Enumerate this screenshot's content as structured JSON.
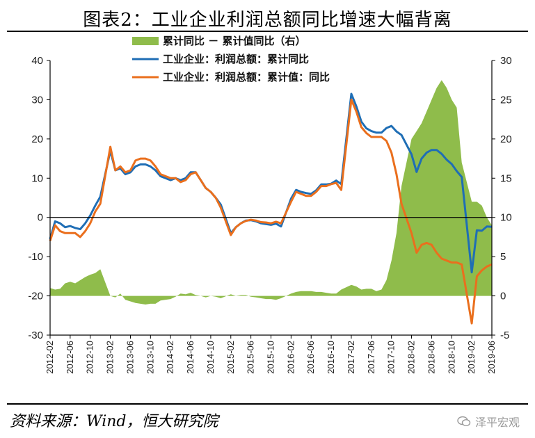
{
  "title": "图表2：工业企业利润总额同比增速大幅背离",
  "source": "资料来源：Wind，恒大研究院",
  "watermark": "泽平宏观",
  "colors": {
    "area": "#8fbc4b",
    "line1": "#1f6eb5",
    "line2": "#ea6f1d"
  },
  "chart_data": {
    "type": "line",
    "left_axis": {
      "ylim": [
        -30,
        40
      ],
      "ticks": [
        -30,
        -20,
        -10,
        0,
        10,
        20,
        30,
        40
      ]
    },
    "right_axis": {
      "ylim": [
        -5,
        30
      ],
      "ticks": [
        -5,
        0,
        5,
        10,
        15,
        20,
        25,
        30
      ]
    },
    "x_tick_labels": [
      "2012-02",
      "2012-06",
      "2012-10",
      "2013-02",
      "2013-06",
      "2013-10",
      "2014-02",
      "2014-06",
      "2014-10",
      "2015-02",
      "2015-06",
      "2015-10",
      "2016-02",
      "2016-06",
      "2016-10",
      "2017-02",
      "2017-06",
      "2017-10",
      "2018-02",
      "2018-06",
      "2018-10",
      "2019-02",
      "2019-06"
    ],
    "grid": false,
    "legend_position": "top-center",
    "series": [
      {
        "name": "累计同比 － 累计值同比（右）",
        "kind": "area",
        "axis": "right",
        "points": [
          [
            "2012-02",
            1.0
          ],
          [
            "2012-03",
            0.8
          ],
          [
            "2012-04",
            0.9
          ],
          [
            "2012-05",
            1.6
          ],
          [
            "2012-06",
            1.8
          ],
          [
            "2012-07",
            1.6
          ],
          [
            "2012-08",
            2.0
          ],
          [
            "2012-09",
            2.4
          ],
          [
            "2012-10",
            2.7
          ],
          [
            "2012-11",
            2.9
          ],
          [
            "2012-12",
            3.4
          ],
          [
            "2013-02",
            0.0
          ],
          [
            "2013-03",
            -0.2
          ],
          [
            "2013-04",
            0.3
          ],
          [
            "2013-05",
            -0.5
          ],
          [
            "2013-06",
            -0.7
          ],
          [
            "2013-07",
            -0.9
          ],
          [
            "2013-08",
            -1.0
          ],
          [
            "2013-09",
            -1.1
          ],
          [
            "2013-10",
            -1.0
          ],
          [
            "2013-11",
            -1.0
          ],
          [
            "2013-12",
            -0.6
          ],
          [
            "2014-02",
            -0.4
          ],
          [
            "2014-03",
            -0.1
          ],
          [
            "2014-04",
            0.3
          ],
          [
            "2014-05",
            0.2
          ],
          [
            "2014-06",
            0.4
          ],
          [
            "2014-07",
            0.1
          ],
          [
            "2014-08",
            0.0
          ],
          [
            "2014-09",
            -0.2
          ],
          [
            "2014-10",
            0.0
          ],
          [
            "2014-11",
            -0.1
          ],
          [
            "2014-12",
            -0.3
          ],
          [
            "2015-02",
            0.2
          ],
          [
            "2015-03",
            0.0
          ],
          [
            "2015-04",
            0.1
          ],
          [
            "2015-05",
            0.1
          ],
          [
            "2015-06",
            -0.1
          ],
          [
            "2015-07",
            -0.2
          ],
          [
            "2015-08",
            -0.3
          ],
          [
            "2015-09",
            -0.4
          ],
          [
            "2015-10",
            -0.4
          ],
          [
            "2015-11",
            -0.5
          ],
          [
            "2015-12",
            -0.3
          ],
          [
            "2016-02",
            0.3
          ],
          [
            "2016-03",
            0.5
          ],
          [
            "2016-04",
            0.6
          ],
          [
            "2016-05",
            0.6
          ],
          [
            "2016-06",
            0.6
          ],
          [
            "2016-07",
            0.5
          ],
          [
            "2016-08",
            0.5
          ],
          [
            "2016-09",
            0.4
          ],
          [
            "2016-10",
            0.3
          ],
          [
            "2016-11",
            0.3
          ],
          [
            "2016-12",
            0.8
          ],
          [
            "2017-02",
            1.4
          ],
          [
            "2017-03",
            1.2
          ],
          [
            "2017-04",
            0.8
          ],
          [
            "2017-05",
            0.9
          ],
          [
            "2017-06",
            0.9
          ],
          [
            "2017-07",
            0.6
          ],
          [
            "2017-08",
            0.8
          ],
          [
            "2017-09",
            2.0
          ],
          [
            "2017-10",
            4.5
          ],
          [
            "2017-11",
            8.0
          ],
          [
            "2017-12",
            14.0
          ],
          [
            "2018-02",
            20.0
          ],
          [
            "2018-03",
            21.0
          ],
          [
            "2018-04",
            22.0
          ],
          [
            "2018-05",
            23.5
          ],
          [
            "2018-06",
            25.0
          ],
          [
            "2018-07",
            26.5
          ],
          [
            "2018-08",
            27.5
          ],
          [
            "2018-09",
            26.5
          ],
          [
            "2018-10",
            25.0
          ],
          [
            "2018-11",
            24.0
          ],
          [
            "2018-12",
            17.0
          ],
          [
            "2019-02",
            12.0
          ],
          [
            "2019-03",
            12.0
          ],
          [
            "2019-04",
            11.5
          ],
          [
            "2019-05",
            10.0
          ],
          [
            "2019-06",
            9.0
          ]
        ]
      },
      {
        "name": "工业企业：利润总额：累计同比",
        "kind": "line",
        "axis": "left",
        "points": [
          [
            "2012-02",
            -5.5
          ],
          [
            "2012-03",
            -1.0
          ],
          [
            "2012-04",
            -1.5
          ],
          [
            "2012-05",
            -2.5
          ],
          [
            "2012-06",
            -2.2
          ],
          [
            "2012-07",
            -2.7
          ],
          [
            "2012-08",
            -3.0
          ],
          [
            "2012-09",
            -1.5
          ],
          [
            "2012-10",
            0.5
          ],
          [
            "2012-11",
            3.0
          ],
          [
            "2012-12",
            5.3
          ],
          [
            "2013-02",
            17.0
          ],
          [
            "2013-03",
            12.0
          ],
          [
            "2013-04",
            12.5
          ],
          [
            "2013-05",
            11.0
          ],
          [
            "2013-06",
            11.5
          ],
          [
            "2013-07",
            13.0
          ],
          [
            "2013-08",
            13.5
          ],
          [
            "2013-09",
            13.5
          ],
          [
            "2013-10",
            13.0
          ],
          [
            "2013-11",
            12.0
          ],
          [
            "2013-12",
            10.5
          ],
          [
            "2014-02",
            9.5
          ],
          [
            "2014-03",
            10.0
          ],
          [
            "2014-04",
            9.5
          ],
          [
            "2014-05",
            10.0
          ],
          [
            "2014-06",
            11.5
          ],
          [
            "2014-07",
            11.5
          ],
          [
            "2014-08",
            9.5
          ],
          [
            "2014-09",
            7.5
          ],
          [
            "2014-10",
            6.5
          ],
          [
            "2014-11",
            5.0
          ],
          [
            "2014-12",
            3.3
          ],
          [
            "2015-02",
            -4.0
          ],
          [
            "2015-03",
            -2.5
          ],
          [
            "2015-04",
            -1.5
          ],
          [
            "2015-05",
            -0.8
          ],
          [
            "2015-06",
            -0.7
          ],
          [
            "2015-07",
            -1.0
          ],
          [
            "2015-08",
            -1.5
          ],
          [
            "2015-09",
            -1.7
          ],
          [
            "2015-10",
            -1.9
          ],
          [
            "2015-11",
            -1.6
          ],
          [
            "2015-12",
            -2.3
          ],
          [
            "2016-02",
            4.8
          ],
          [
            "2016-03",
            7.0
          ],
          [
            "2016-04",
            6.5
          ],
          [
            "2016-05",
            6.2
          ],
          [
            "2016-06",
            6.0
          ],
          [
            "2016-07",
            6.9
          ],
          [
            "2016-08",
            8.4
          ],
          [
            "2016-09",
            8.4
          ],
          [
            "2016-10",
            8.6
          ],
          [
            "2016-11",
            9.4
          ],
          [
            "2016-12",
            8.5
          ],
          [
            "2017-02",
            31.5
          ],
          [
            "2017-03",
            28.3
          ],
          [
            "2017-04",
            24.4
          ],
          [
            "2017-05",
            22.7
          ],
          [
            "2017-06",
            22.0
          ],
          [
            "2017-07",
            21.6
          ],
          [
            "2017-08",
            21.6
          ],
          [
            "2017-09",
            22.8
          ],
          [
            "2017-10",
            23.3
          ],
          [
            "2017-11",
            21.9
          ],
          [
            "2017-12",
            21.0
          ],
          [
            "2018-02",
            16.1
          ],
          [
            "2018-03",
            11.6
          ],
          [
            "2018-04",
            15.0
          ],
          [
            "2018-05",
            16.5
          ],
          [
            "2018-06",
            17.2
          ],
          [
            "2018-07",
            17.2
          ],
          [
            "2018-08",
            16.2
          ],
          [
            "2018-09",
            14.7
          ],
          [
            "2018-10",
            13.6
          ],
          [
            "2018-11",
            11.8
          ],
          [
            "2018-12",
            10.3
          ],
          [
            "2019-02",
            -14.0
          ],
          [
            "2019-03",
            -3.3
          ],
          [
            "2019-04",
            -3.4
          ],
          [
            "2019-05",
            -2.3
          ],
          [
            "2019-06",
            -2.4
          ]
        ]
      },
      {
        "name": "工业企业：利润总额：累计值：同比",
        "kind": "line",
        "axis": "left",
        "points": [
          [
            "2012-02",
            -6.0
          ],
          [
            "2012-03",
            -2.0
          ],
          [
            "2012-04",
            -3.5
          ],
          [
            "2012-05",
            -4.0
          ],
          [
            "2012-06",
            -4.0
          ],
          [
            "2012-07",
            -4.0
          ],
          [
            "2012-08",
            -5.0
          ],
          [
            "2012-09",
            -3.5
          ],
          [
            "2012-10",
            -1.5
          ],
          [
            "2012-11",
            1.5
          ],
          [
            "2012-12",
            3.5
          ],
          [
            "2013-02",
            18.0
          ],
          [
            "2013-03",
            12.0
          ],
          [
            "2013-04",
            13.0
          ],
          [
            "2013-05",
            11.5
          ],
          [
            "2013-06",
            12.0
          ],
          [
            "2013-07",
            14.5
          ],
          [
            "2013-08",
            15.0
          ],
          [
            "2013-09",
            15.0
          ],
          [
            "2013-10",
            14.5
          ],
          [
            "2013-11",
            13.0
          ],
          [
            "2013-12",
            11.0
          ],
          [
            "2014-02",
            10.0
          ],
          [
            "2014-03",
            10.0
          ],
          [
            "2014-04",
            9.0
          ],
          [
            "2014-05",
            9.5
          ],
          [
            "2014-06",
            11.0
          ],
          [
            "2014-07",
            11.5
          ],
          [
            "2014-08",
            9.5
          ],
          [
            "2014-09",
            7.5
          ],
          [
            "2014-10",
            6.5
          ],
          [
            "2014-11",
            5.0
          ],
          [
            "2014-12",
            2.5
          ],
          [
            "2015-02",
            -4.5
          ],
          [
            "2015-03",
            -2.5
          ],
          [
            "2015-04",
            -1.5
          ],
          [
            "2015-05",
            -0.9
          ],
          [
            "2015-06",
            -0.6
          ],
          [
            "2015-07",
            -0.8
          ],
          [
            "2015-08",
            -1.2
          ],
          [
            "2015-09",
            -1.3
          ],
          [
            "2015-10",
            -1.5
          ],
          [
            "2015-11",
            -1.1
          ],
          [
            "2015-12",
            -1.5
          ],
          [
            "2016-02",
            4.0
          ],
          [
            "2016-03",
            6.5
          ],
          [
            "2016-04",
            6.0
          ],
          [
            "2016-05",
            5.5
          ],
          [
            "2016-06",
            5.5
          ],
          [
            "2016-07",
            6.5
          ],
          [
            "2016-08",
            8.0
          ],
          [
            "2016-09",
            8.0
          ],
          [
            "2016-10",
            8.5
          ],
          [
            "2016-11",
            8.8
          ],
          [
            "2016-12",
            7.0
          ],
          [
            "2017-02",
            30.0
          ],
          [
            "2017-03",
            27.0
          ],
          [
            "2017-04",
            23.0
          ],
          [
            "2017-05",
            21.5
          ],
          [
            "2017-06",
            20.5
          ],
          [
            "2017-07",
            20.5
          ],
          [
            "2017-08",
            20.5
          ],
          [
            "2017-09",
            19.5
          ],
          [
            "2017-10",
            16.5
          ],
          [
            "2017-11",
            11.0
          ],
          [
            "2017-12",
            3.5
          ],
          [
            "2018-02",
            -4.0
          ],
          [
            "2018-03",
            -9.0
          ],
          [
            "2018-04",
            -7.0
          ],
          [
            "2018-05",
            -6.5
          ],
          [
            "2018-06",
            -7.0
          ],
          [
            "2018-07",
            -9.0
          ],
          [
            "2018-08",
            -10.5
          ],
          [
            "2018-09",
            -11.0
          ],
          [
            "2018-10",
            -11.5
          ],
          [
            "2018-11",
            -11.5
          ],
          [
            "2018-12",
            -12.0
          ],
          [
            "2019-02",
            -27.0
          ],
          [
            "2019-03",
            -15.0
          ],
          [
            "2019-04",
            -13.5
          ],
          [
            "2019-05",
            -12.5
          ],
          [
            "2019-06",
            -12.0
          ]
        ]
      }
    ]
  }
}
